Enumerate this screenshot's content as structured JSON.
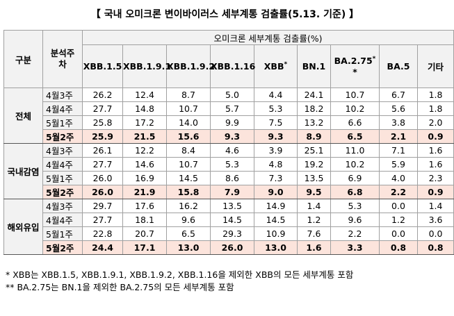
{
  "title": "【 국내 오미크론 변이바이러스 세부계통 검출률(5.13. 기준) 】",
  "header": {
    "group_label": "구분",
    "week_label": "분석주차",
    "span_label": "오미크론 세부계통 검출률(%)",
    "columns": [
      {
        "label": "XBB.1.5",
        "sup": ""
      },
      {
        "label": "XBB.1.9.1",
        "sup": ""
      },
      {
        "label": "XBB.1.9.2",
        "sup": ""
      },
      {
        "label": "XBB.1.16",
        "sup": ""
      },
      {
        "label": "XBB",
        "sup": "*"
      },
      {
        "label": "BN.1",
        "sup": ""
      },
      {
        "label": "BA.2.75",
        "sup": "*"
      },
      {
        "label": "BA.5",
        "sup": ""
      },
      {
        "label": "기타",
        "sup": ""
      }
    ],
    "ba275_sub": "*"
  },
  "groups": [
    {
      "name": "전체",
      "rows": [
        {
          "week": "4월3주",
          "values": [
            "26.2",
            "12.4",
            "8.7",
            "5.0",
            "4.4",
            "24.1",
            "10.7",
            "6.7",
            "1.8"
          ]
        },
        {
          "week": "4월4주",
          "values": [
            "27.7",
            "14.8",
            "10.7",
            "5.7",
            "5.3",
            "18.2",
            "10.2",
            "5.6",
            "1.8"
          ]
        },
        {
          "week": "5월1주",
          "values": [
            "25.8",
            "17.2",
            "14.0",
            "9.9",
            "7.5",
            "13.2",
            "6.6",
            "3.8",
            "2.0"
          ]
        },
        {
          "week": "5월2주",
          "values": [
            "25.9",
            "21.5",
            "15.6",
            "9.3",
            "9.3",
            "8.9",
            "6.5",
            "2.1",
            "0.9"
          ]
        }
      ]
    },
    {
      "name": "국내감염",
      "rows": [
        {
          "week": "4월3주",
          "values": [
            "26.1",
            "12.2",
            "8.4",
            "4.6",
            "3.9",
            "25.1",
            "11.0",
            "7.1",
            "1.6"
          ]
        },
        {
          "week": "4월4주",
          "values": [
            "27.7",
            "14.6",
            "10.7",
            "5.3",
            "4.8",
            "19.2",
            "10.2",
            "5.9",
            "1.6"
          ]
        },
        {
          "week": "5월1주",
          "values": [
            "26.0",
            "16.9",
            "14.5",
            "8.6",
            "7.3",
            "13.5",
            "6.9",
            "4.0",
            "2.3"
          ]
        },
        {
          "week": "5월2주",
          "values": [
            "26.0",
            "21.9",
            "15.8",
            "7.9",
            "9.0",
            "9.5",
            "6.8",
            "2.2",
            "0.9"
          ]
        }
      ]
    },
    {
      "name": "해외유입",
      "rows": [
        {
          "week": "4월3주",
          "values": [
            "29.7",
            "17.6",
            "16.2",
            "13.5",
            "14.9",
            "1.4",
            "5.3",
            "0.0",
            "1.4"
          ]
        },
        {
          "week": "4월4주",
          "values": [
            "27.7",
            "18.1",
            "9.6",
            "14.5",
            "14.5",
            "1.2",
            "9.6",
            "1.2",
            "3.6"
          ]
        },
        {
          "week": "5월1주",
          "values": [
            "22.8",
            "20.7",
            "6.5",
            "29.3",
            "10.9",
            "7.6",
            "2.2",
            "0.0",
            "0.0"
          ]
        },
        {
          "week": "5월2주",
          "values": [
            "24.4",
            "17.1",
            "13.0",
            "26.0",
            "13.0",
            "1.6",
            "3.3",
            "0.8",
            "0.8"
          ]
        }
      ]
    }
  ],
  "notes": [
    "* XBB는 XBB.1.5, XBB.1.9.1, XBB.1.9.2, XBB.1.16을 제외한 XBB의 모든 세부계통 포함",
    "** BA.2.75는 BN.1을 제외한 BA.2.75의 모든 세부계통 포함"
  ],
  "colors": {
    "header_bg": "#f2f2f2",
    "highlight_row": "#fce4dc",
    "border": "#a0a0a0"
  }
}
